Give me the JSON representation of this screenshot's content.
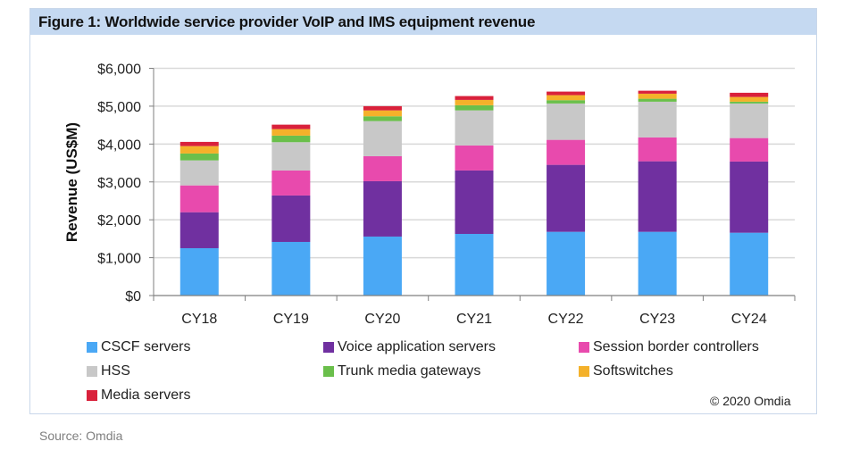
{
  "figure": {
    "title": "Figure 1: Worldwide service provider VoIP and IMS equipment revenue",
    "copyright": "© 2020 Omdia",
    "source": "Source: Omdia"
  },
  "chart_data": {
    "type": "bar",
    "stacked": true,
    "title": "Figure 1: Worldwide service provider VoIP and IMS equipment revenue",
    "xlabel": "",
    "ylabel": "Revenue (US$M)",
    "ylim": [
      0,
      6000
    ],
    "yticks": [
      0,
      1000,
      2000,
      3000,
      4000,
      5000,
      6000
    ],
    "ytick_labels": [
      "$0",
      "$1,000",
      "$2,000",
      "$3,000",
      "$4,000",
      "$5,000",
      "$6,000"
    ],
    "grid": true,
    "legend_position": "bottom",
    "categories": [
      "CY18",
      "CY19",
      "CY20",
      "CY21",
      "CY22",
      "CY23",
      "CY24"
    ],
    "series": [
      {
        "name": "CSCF servers",
        "color": "#4aa8f5",
        "values": [
          1250,
          1415,
          1557,
          1627,
          1682,
          1682,
          1658
        ]
      },
      {
        "name": "Voice application servers",
        "color": "#7030a0",
        "values": [
          950,
          1227,
          1462,
          1675,
          1769,
          1863,
          1880
        ]
      },
      {
        "name": "Session border controllers",
        "color": "#e84aad",
        "values": [
          708,
          660,
          660,
          660,
          660,
          630,
          620
        ]
      },
      {
        "name": "HSS",
        "color": "#c8c8c8",
        "values": [
          660,
          747,
          927,
          927,
          960,
          943,
          913
        ]
      },
      {
        "name": "Trunk media gateways",
        "color": "#6abf4b",
        "values": [
          182,
          173,
          127,
          135,
          87,
          78,
          47
        ]
      },
      {
        "name": "Softswitches",
        "color": "#f4b12a",
        "values": [
          196,
          172,
          156,
          141,
          133,
          134,
          125
        ]
      },
      {
        "name": "Media servers",
        "color": "#d9213b",
        "values": [
          111,
          118,
          111,
          102,
          94,
          78,
          111
        ]
      }
    ]
  }
}
